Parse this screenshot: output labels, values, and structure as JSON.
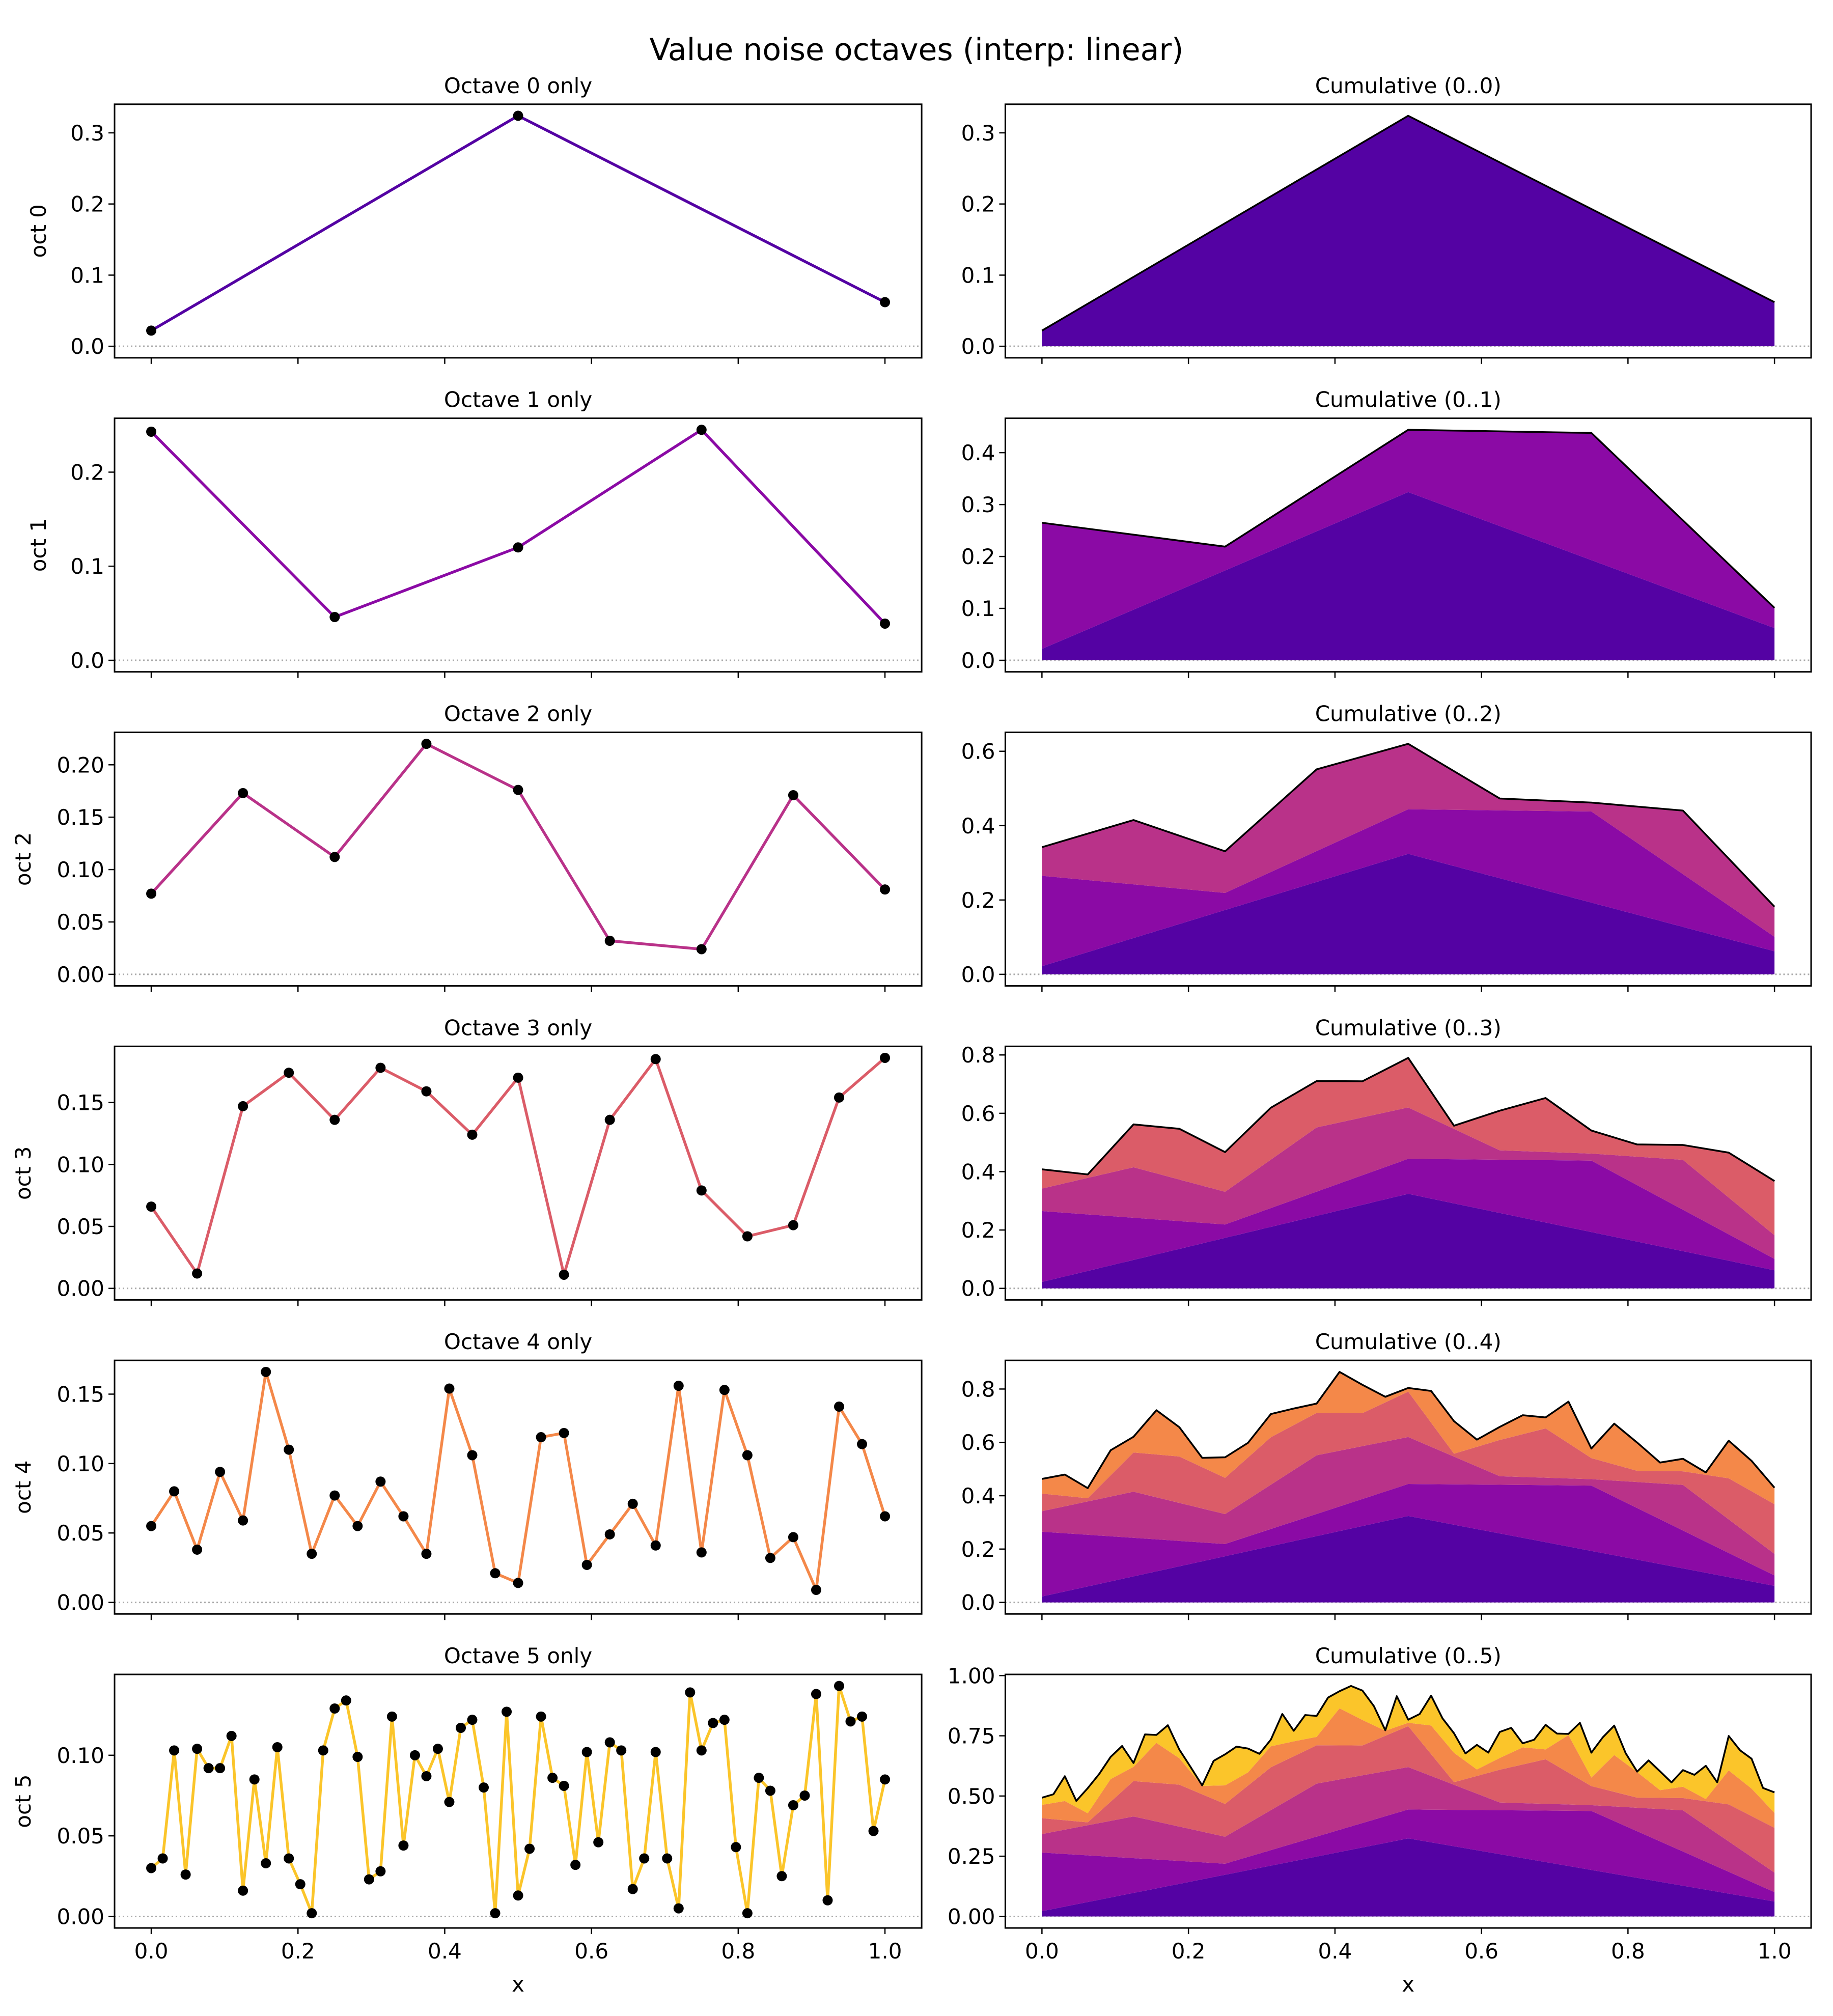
{
  "chart_data": {
    "type": "line",
    "title": "Value noise octaves (interp: linear)",
    "xlabel": "x",
    "xlim": [
      -0.05,
      1.05
    ],
    "xticks": [
      0.0,
      0.2,
      0.4,
      0.6,
      0.8,
      1.0
    ],
    "xtick_labels": [
      "0.0",
      "0.2",
      "0.4",
      "0.6",
      "0.8",
      "1.0"
    ],
    "colors": [
      "#5402a3",
      "#8b0aa5",
      "#b93289",
      "#db5c68",
      "#f48849",
      "#fbc52a"
    ],
    "zero_line": {
      "style": "dotted",
      "color": "#aaaaaa"
    },
    "octaves": [
      {
        "title": "Octave 0 only",
        "ylabel": "oct 0",
        "yticks": [
          "0.0",
          "0.1",
          "0.2",
          "0.3"
        ],
        "ytick_values": [
          0.0,
          0.1,
          0.2,
          0.3
        ],
        "values": [
          0.022,
          0.324,
          0.062
        ]
      },
      {
        "title": "Octave 1 only",
        "ylabel": "oct 1",
        "yticks": [
          "0.0",
          "0.1",
          "0.2"
        ],
        "ytick_values": [
          0.0,
          0.1,
          0.2
        ],
        "values": [
          0.243,
          0.046,
          0.12,
          0.245,
          0.039
        ]
      },
      {
        "title": "Octave 2 only",
        "ylabel": "oct 2",
        "yticks": [
          "0.00",
          "0.05",
          "0.10",
          "0.15",
          "0.20"
        ],
        "ytick_values": [
          0.0,
          0.05,
          0.1,
          0.15,
          0.2
        ],
        "values": [
          0.077,
          0.173,
          0.112,
          0.22,
          0.176,
          0.032,
          0.024,
          0.171,
          0.081
        ]
      },
      {
        "title": "Octave 3 only",
        "ylabel": "oct 3",
        "yticks": [
          "0.00",
          "0.05",
          "0.10",
          "0.15"
        ],
        "ytick_values": [
          0.0,
          0.05,
          0.1,
          0.15
        ],
        "values": [
          0.066,
          0.012,
          0.147,
          0.174,
          0.136,
          0.178,
          0.159,
          0.124,
          0.17,
          0.011,
          0.136,
          0.185,
          0.079,
          0.042,
          0.051,
          0.154,
          0.186
        ]
      },
      {
        "title": "Octave 4 only",
        "ylabel": "oct 4",
        "yticks": [
          "0.00",
          "0.05",
          "0.10",
          "0.15"
        ],
        "ytick_values": [
          0.0,
          0.05,
          0.1,
          0.15
        ],
        "values": [
          0.055,
          0.08,
          0.038,
          0.094,
          0.059,
          0.166,
          0.11,
          0.035,
          0.077,
          0.055,
          0.087,
          0.062,
          0.035,
          0.154,
          0.106,
          0.021,
          0.014,
          0.119,
          0.122,
          0.027,
          0.049,
          0.071,
          0.041,
          0.156,
          0.036,
          0.153,
          0.106,
          0.032,
          0.047,
          0.009,
          0.141,
          0.114,
          0.062
        ]
      },
      {
        "title": "Octave 5 only",
        "ylabel": "oct 5",
        "yticks": [
          "0.00",
          "0.05",
          "0.10"
        ],
        "ytick_values": [
          0.0,
          0.05,
          0.1
        ],
        "values": [
          0.03,
          0.036,
          0.103,
          0.026,
          0.104,
          0.092,
          0.092,
          0.112,
          0.016,
          0.085,
          0.033,
          0.105,
          0.036,
          0.02,
          0.002,
          0.103,
          0.129,
          0.134,
          0.099,
          0.023,
          0.028,
          0.124,
          0.044,
          0.1,
          0.087,
          0.104,
          0.071,
          0.117,
          0.122,
          0.08,
          0.002,
          0.127,
          0.013,
          0.042,
          0.124,
          0.086,
          0.081,
          0.032,
          0.102,
          0.046,
          0.108,
          0.103,
          0.017,
          0.036,
          0.102,
          0.036,
          0.005,
          0.139,
          0.103,
          0.12,
          0.122,
          0.043,
          0.002,
          0.086,
          0.078,
          0.025,
          0.069,
          0.075,
          0.138,
          0.01,
          0.143,
          0.121,
          0.124,
          0.053,
          0.085
        ]
      }
    ],
    "cumulative": [
      {
        "title": "Cumulative (0..0)",
        "yticks": [
          "0.0",
          "0.1",
          "0.2",
          "0.3"
        ],
        "ytick_values": [
          0.0,
          0.1,
          0.2,
          0.3
        ]
      },
      {
        "title": "Cumulative (0..1)",
        "yticks": [
          "0.0",
          "0.1",
          "0.2",
          "0.3",
          "0.4"
        ],
        "ytick_values": [
          0.0,
          0.1,
          0.2,
          0.3,
          0.4
        ]
      },
      {
        "title": "Cumulative (0..2)",
        "yticks": [
          "0.0",
          "0.2",
          "0.4",
          "0.6"
        ],
        "ytick_values": [
          0.0,
          0.2,
          0.4,
          0.6
        ]
      },
      {
        "title": "Cumulative (0..3)",
        "yticks": [
          "0.0",
          "0.2",
          "0.4",
          "0.6",
          "0.8"
        ],
        "ytick_values": [
          0.0,
          0.2,
          0.4,
          0.6,
          0.8
        ]
      },
      {
        "title": "Cumulative (0..4)",
        "yticks": [
          "0.0",
          "0.2",
          "0.4",
          "0.6",
          "0.8"
        ],
        "ytick_values": [
          0.0,
          0.2,
          0.4,
          0.6,
          0.8
        ]
      },
      {
        "title": "Cumulative (0..5)",
        "yticks": [
          "0.00",
          "0.25",
          "0.50",
          "0.75",
          "1.00"
        ],
        "ytick_values": [
          0.0,
          0.25,
          0.5,
          0.75,
          1.0
        ]
      }
    ]
  }
}
